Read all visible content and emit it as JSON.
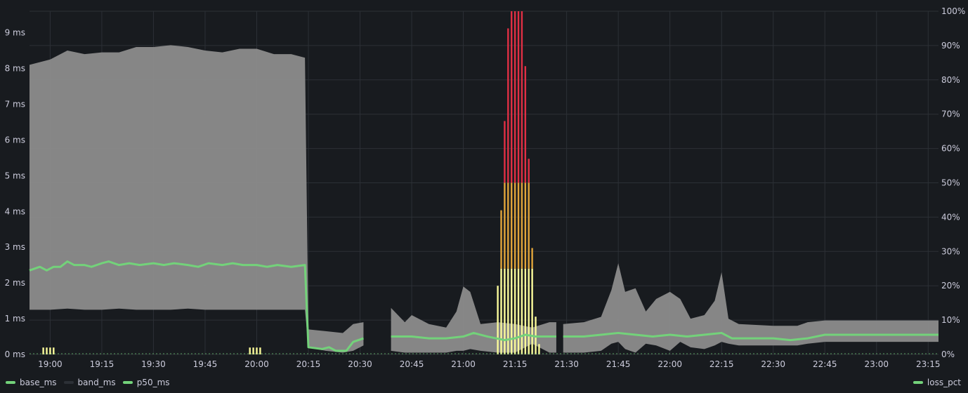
{
  "colors": {
    "background": "#181b1f",
    "grid": "#2c3036",
    "axis_text": "#ccccdc",
    "band": "#8c8c8c",
    "p50": "#73d27a",
    "loss_low": "#fafa9a",
    "loss_mid": "#e0a43a",
    "loss_high": "#e02f44"
  },
  "chart_data": {
    "type": "line",
    "x_axis": {
      "range": [
        "18:54",
        "23:18"
      ],
      "tick_labels": [
        "19:00",
        "19:15",
        "19:30",
        "19:45",
        "20:00",
        "20:15",
        "20:30",
        "20:45",
        "21:00",
        "21:15",
        "21:30",
        "21:45",
        "22:00",
        "22:15",
        "22:30",
        "22:45",
        "23:00",
        "23:15"
      ]
    },
    "y_left": {
      "range": [
        0,
        9.6
      ],
      "unit": "ms",
      "tick_labels": [
        "0 ms",
        "1 ms",
        "2 ms",
        "3 ms",
        "4 ms",
        "5 ms",
        "6 ms",
        "7 ms",
        "8 ms",
        "9 ms"
      ]
    },
    "y_right": {
      "range": [
        0,
        100
      ],
      "unit": "%",
      "tick_labels": [
        "0%",
        "10%",
        "20%",
        "30%",
        "40%",
        "50%",
        "60%",
        "70%",
        "80%",
        "90%",
        "100%"
      ]
    },
    "grid": true,
    "legend_left": [
      "base_ms",
      "band_ms",
      "p50_ms"
    ],
    "legend_right": [
      "loss_pct"
    ],
    "series_colors": {
      "base_ms": "#73d27a",
      "band_ms": "#2c3036",
      "p50_ms": "#73d27a",
      "loss_pct": "#73d27a"
    },
    "band": [
      {
        "t": "18:54",
        "lo": 1.25,
        "hi": 8.1
      },
      {
        "t": "19:00",
        "lo": 1.25,
        "hi": 8.25
      },
      {
        "t": "19:05",
        "lo": 1.28,
        "hi": 8.5
      },
      {
        "t": "19:10",
        "lo": 1.25,
        "hi": 8.4
      },
      {
        "t": "19:15",
        "lo": 1.25,
        "hi": 8.45
      },
      {
        "t": "19:20",
        "lo": 1.28,
        "hi": 8.45
      },
      {
        "t": "19:25",
        "lo": 1.25,
        "hi": 8.6
      },
      {
        "t": "19:30",
        "lo": 1.25,
        "hi": 8.6
      },
      {
        "t": "19:35",
        "lo": 1.25,
        "hi": 8.65
      },
      {
        "t": "19:40",
        "lo": 1.28,
        "hi": 8.6
      },
      {
        "t": "19:45",
        "lo": 1.25,
        "hi": 8.5
      },
      {
        "t": "19:50",
        "lo": 1.25,
        "hi": 8.45
      },
      {
        "t": "19:55",
        "lo": 1.25,
        "hi": 8.55
      },
      {
        "t": "20:00",
        "lo": 1.25,
        "hi": 8.55
      },
      {
        "t": "20:05",
        "lo": 1.25,
        "hi": 8.4
      },
      {
        "t": "20:10",
        "lo": 1.25,
        "hi": 8.4
      },
      {
        "t": "20:14",
        "lo": 1.25,
        "hi": 8.3
      },
      {
        "t": "20:15",
        "lo": 0.2,
        "hi": 0.7
      },
      {
        "t": "20:20",
        "lo": 0.1,
        "hi": 0.65
      },
      {
        "t": "20:25",
        "lo": 0.05,
        "hi": 0.6
      },
      {
        "t": "20:28",
        "lo": 0.1,
        "hi": 0.85
      },
      {
        "t": "20:31",
        "lo": 0.25,
        "hi": 0.9
      },
      {
        "t": "20:32",
        "lo": null,
        "hi": null
      },
      {
        "t": "20:39",
        "lo": null,
        "hi": null
      },
      {
        "t": "20:39",
        "lo": 0.1,
        "hi": 1.3
      },
      {
        "t": "20:43",
        "lo": 0.05,
        "hi": 0.9
      },
      {
        "t": "20:45",
        "lo": 0.05,
        "hi": 1.1
      },
      {
        "t": "20:50",
        "lo": 0.05,
        "hi": 0.85
      },
      {
        "t": "20:55",
        "lo": 0.05,
        "hi": 0.75
      },
      {
        "t": "20:58",
        "lo": 0.1,
        "hi": 1.2
      },
      {
        "t": "21:00",
        "lo": 0.1,
        "hi": 1.9
      },
      {
        "t": "21:02",
        "lo": 0.15,
        "hi": 1.75
      },
      {
        "t": "21:05",
        "lo": 0.1,
        "hi": 0.85
      },
      {
        "t": "21:10",
        "lo": 0.05,
        "hi": 0.9
      },
      {
        "t": "21:15",
        "lo": 0.05,
        "hi": 0.85
      },
      {
        "t": "21:20",
        "lo": 0.3,
        "hi": 0.75
      },
      {
        "t": "21:25",
        "lo": 0.05,
        "hi": 0.9
      },
      {
        "t": "21:27",
        "lo": 0.05,
        "hi": 0.9
      },
      {
        "t": "21:28",
        "lo": null,
        "hi": null
      },
      {
        "t": "21:29",
        "lo": null,
        "hi": null
      },
      {
        "t": "21:29",
        "lo": 0.05,
        "hi": 0.85
      },
      {
        "t": "21:35",
        "lo": 0.05,
        "hi": 0.9
      },
      {
        "t": "21:40",
        "lo": 0.1,
        "hi": 1.05
      },
      {
        "t": "21:43",
        "lo": 0.3,
        "hi": 1.8
      },
      {
        "t": "21:45",
        "lo": 0.35,
        "hi": 2.55
      },
      {
        "t": "21:47",
        "lo": 0.15,
        "hi": 1.75
      },
      {
        "t": "21:50",
        "lo": 0.05,
        "hi": 1.85
      },
      {
        "t": "21:53",
        "lo": 0.3,
        "hi": 1.2
      },
      {
        "t": "21:56",
        "lo": 0.25,
        "hi": 1.55
      },
      {
        "t": "22:00",
        "lo": 0.1,
        "hi": 1.75
      },
      {
        "t": "22:03",
        "lo": 0.35,
        "hi": 1.55
      },
      {
        "t": "22:06",
        "lo": 0.2,
        "hi": 1.0
      },
      {
        "t": "22:10",
        "lo": 0.15,
        "hi": 1.1
      },
      {
        "t": "22:13",
        "lo": 0.25,
        "hi": 1.5
      },
      {
        "t": "22:15",
        "lo": 0.35,
        "hi": 2.3
      },
      {
        "t": "22:17",
        "lo": 0.3,
        "hi": 1.0
      },
      {
        "t": "22:20",
        "lo": 0.25,
        "hi": 0.85
      },
      {
        "t": "22:30",
        "lo": 0.25,
        "hi": 0.8
      },
      {
        "t": "22:37",
        "lo": 0.25,
        "hi": 0.8
      },
      {
        "t": "22:40",
        "lo": 0.3,
        "hi": 0.9
      },
      {
        "t": "22:45",
        "lo": 0.35,
        "hi": 0.95
      },
      {
        "t": "23:00",
        "lo": 0.35,
        "hi": 0.95
      },
      {
        "t": "23:10",
        "lo": 0.35,
        "hi": 0.95
      },
      {
        "t": "23:18",
        "lo": 0.35,
        "hi": 0.95
      }
    ],
    "p50": [
      {
        "t": "18:54",
        "v": 2.35
      },
      {
        "t": "18:57",
        "v": 2.45
      },
      {
        "t": "18:59",
        "v": 2.35
      },
      {
        "t": "19:01",
        "v": 2.45
      },
      {
        "t": "19:03",
        "v": 2.45
      },
      {
        "t": "19:05",
        "v": 2.6
      },
      {
        "t": "19:07",
        "v": 2.5
      },
      {
        "t": "19:10",
        "v": 2.5
      },
      {
        "t": "19:12",
        "v": 2.45
      },
      {
        "t": "19:15",
        "v": 2.55
      },
      {
        "t": "19:17",
        "v": 2.6
      },
      {
        "t": "19:20",
        "v": 2.5
      },
      {
        "t": "19:23",
        "v": 2.55
      },
      {
        "t": "19:26",
        "v": 2.5
      },
      {
        "t": "19:30",
        "v": 2.55
      },
      {
        "t": "19:33",
        "v": 2.5
      },
      {
        "t": "19:36",
        "v": 2.55
      },
      {
        "t": "19:40",
        "v": 2.5
      },
      {
        "t": "19:43",
        "v": 2.45
      },
      {
        "t": "19:46",
        "v": 2.55
      },
      {
        "t": "19:50",
        "v": 2.5
      },
      {
        "t": "19:53",
        "v": 2.55
      },
      {
        "t": "19:56",
        "v": 2.5
      },
      {
        "t": "20:00",
        "v": 2.5
      },
      {
        "t": "20:03",
        "v": 2.45
      },
      {
        "t": "20:06",
        "v": 2.5
      },
      {
        "t": "20:10",
        "v": 2.45
      },
      {
        "t": "20:14",
        "v": 2.5
      },
      {
        "t": "20:15",
        "v": 0.2
      },
      {
        "t": "20:19",
        "v": 0.15
      },
      {
        "t": "20:21",
        "v": 0.2
      },
      {
        "t": "20:23",
        "v": 0.1
      },
      {
        "t": "20:26",
        "v": 0.1
      },
      {
        "t": "20:28",
        "v": 0.35
      },
      {
        "t": "20:31",
        "v": 0.45
      },
      {
        "t": "20:32",
        "v": null
      },
      {
        "t": "20:39",
        "v": null
      },
      {
        "t": "20:39",
        "v": 0.5
      },
      {
        "t": "20:45",
        "v": 0.5
      },
      {
        "t": "20:50",
        "v": 0.45
      },
      {
        "t": "20:55",
        "v": 0.45
      },
      {
        "t": "21:00",
        "v": 0.5
      },
      {
        "t": "21:03",
        "v": 0.6
      },
      {
        "t": "21:07",
        "v": 0.5
      },
      {
        "t": "21:12",
        "v": 0.4
      },
      {
        "t": "21:15",
        "v": 0.45
      },
      {
        "t": "21:18",
        "v": 0.55
      },
      {
        "t": "21:21",
        "v": 0.5
      },
      {
        "t": "21:27",
        "v": 0.5
      },
      {
        "t": "21:28",
        "v": null
      },
      {
        "t": "21:29",
        "v": null
      },
      {
        "t": "21:29",
        "v": 0.5
      },
      {
        "t": "21:35",
        "v": 0.5
      },
      {
        "t": "21:40",
        "v": 0.55
      },
      {
        "t": "21:45",
        "v": 0.6
      },
      {
        "t": "21:50",
        "v": 0.55
      },
      {
        "t": "21:55",
        "v": 0.5
      },
      {
        "t": "22:00",
        "v": 0.55
      },
      {
        "t": "22:05",
        "v": 0.5
      },
      {
        "t": "22:10",
        "v": 0.55
      },
      {
        "t": "22:15",
        "v": 0.6
      },
      {
        "t": "22:18",
        "v": 0.45
      },
      {
        "t": "22:25",
        "v": 0.45
      },
      {
        "t": "22:30",
        "v": 0.45
      },
      {
        "t": "22:35",
        "v": 0.4
      },
      {
        "t": "22:40",
        "v": 0.45
      },
      {
        "t": "22:45",
        "v": 0.55
      },
      {
        "t": "23:00",
        "v": 0.55
      },
      {
        "t": "23:10",
        "v": 0.55
      },
      {
        "t": "23:18",
        "v": 0.55
      }
    ],
    "loss_bars": [
      {
        "t": "18:58",
        "v": 2
      },
      {
        "t": "18:59",
        "v": 2
      },
      {
        "t": "19:00",
        "v": 2
      },
      {
        "t": "19:01",
        "v": 2
      },
      {
        "t": "19:58",
        "v": 2
      },
      {
        "t": "19:59",
        "v": 2
      },
      {
        "t": "20:00",
        "v": 2
      },
      {
        "t": "20:01",
        "v": 2
      },
      {
        "t": "21:10",
        "v": 20
      },
      {
        "t": "21:11",
        "v": 42
      },
      {
        "t": "21:12",
        "v": 68
      },
      {
        "t": "21:13",
        "v": 95
      },
      {
        "t": "21:14",
        "v": 100
      },
      {
        "t": "21:15",
        "v": 100
      },
      {
        "t": "21:16",
        "v": 100
      },
      {
        "t": "21:17",
        "v": 100
      },
      {
        "t": "21:18",
        "v": 84
      },
      {
        "t": "21:19",
        "v": 57
      },
      {
        "t": "21:20",
        "v": 31
      },
      {
        "t": "21:21",
        "v": 11
      },
      {
        "t": "21:22",
        "v": 3
      }
    ]
  },
  "legend": {
    "left": [
      {
        "label": "base_ms",
        "color": "#73d27a"
      },
      {
        "label": "band_ms",
        "color": "#2c3036"
      },
      {
        "label": "p50_ms",
        "color": "#73d27a"
      }
    ],
    "right": [
      {
        "label": "loss_pct",
        "color": "#73d27a"
      }
    ]
  }
}
